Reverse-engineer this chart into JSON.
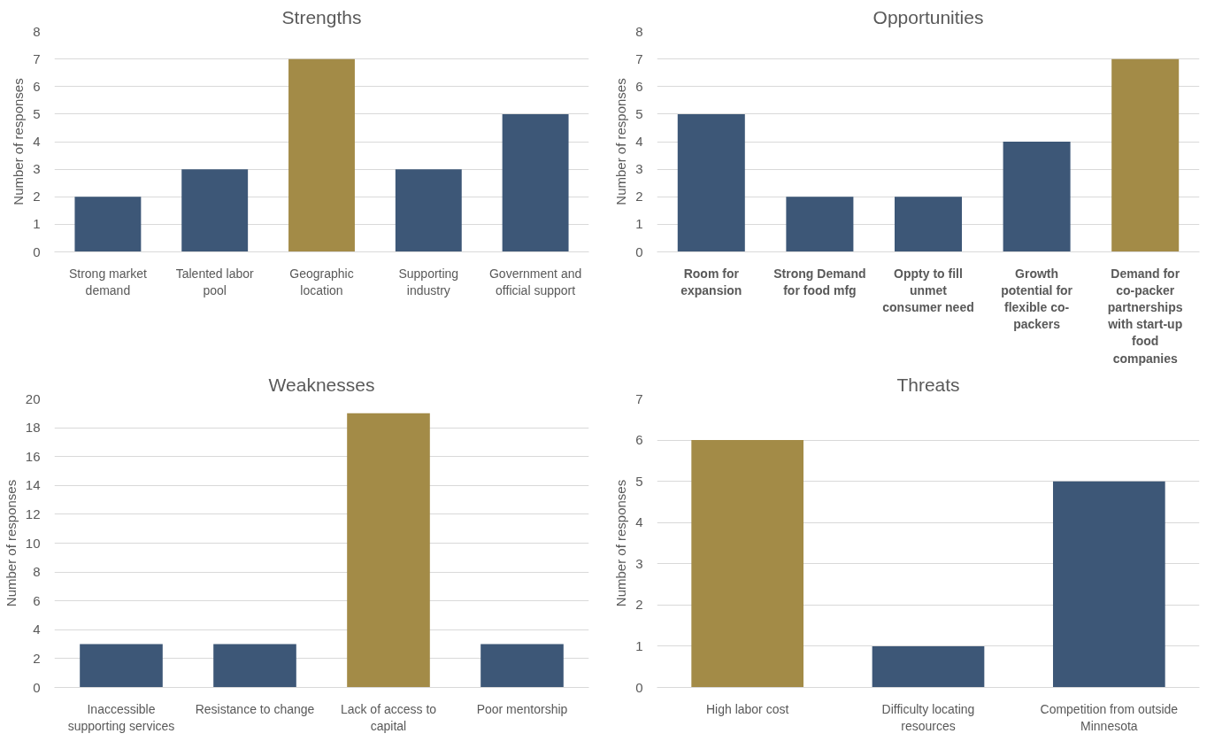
{
  "chart_data": [
    {
      "type": "bar",
      "title": "Strengths",
      "ylabel": "Number of responses",
      "categories": [
        "Strong market demand",
        "Talented labor pool",
        "Geographic location",
        "Supporting industry",
        "Government and official support"
      ],
      "values": [
        2,
        3,
        7,
        3,
        5
      ],
      "colors": [
        "#3d5777",
        "#3d5777",
        "#a38b47",
        "#3d5777",
        "#3d5777"
      ],
      "ylim": [
        0,
        8
      ],
      "yticks": [
        0,
        1,
        2,
        3,
        4,
        5,
        6,
        7,
        8
      ],
      "grid": "y"
    },
    {
      "type": "bar",
      "title": "Opportunities",
      "ylabel": "Number of responses",
      "categories": [
        "Room for expansion",
        "Strong Demand for food mfg",
        "Oppty to fill unmet consumer need",
        "Growth potential for flexible co-packers",
        "Demand for co-packer partnerships with start-up food companies"
      ],
      "values": [
        5,
        2,
        2,
        4,
        7
      ],
      "colors": [
        "#3d5777",
        "#3d5777",
        "#3d5777",
        "#3d5777",
        "#a38b47"
      ],
      "ylim": [
        0,
        8
      ],
      "yticks": [
        0,
        1,
        2,
        3,
        4,
        5,
        6,
        7,
        8
      ],
      "grid": "y"
    },
    {
      "type": "bar",
      "title": "Weaknesses",
      "ylabel": "Number of responses",
      "categories": [
        "Inaccessible supporting services",
        "Resistance to change",
        "Lack of access to capital",
        "Poor mentorship"
      ],
      "values": [
        3,
        3,
        19,
        3
      ],
      "colors": [
        "#3d5777",
        "#3d5777",
        "#a38b47",
        "#3d5777"
      ],
      "ylim": [
        0,
        20
      ],
      "yticks": [
        0,
        2,
        4,
        6,
        8,
        10,
        12,
        14,
        16,
        18,
        20
      ],
      "grid": "y"
    },
    {
      "type": "bar",
      "title": "Threats",
      "ylabel": "Number of responses",
      "categories": [
        "High labor cost",
        "Difficulty locating resources",
        "Competition from outside Minnesota"
      ],
      "values": [
        6,
        1,
        5
      ],
      "colors": [
        "#a38b47",
        "#3d5777",
        "#3d5777"
      ],
      "ylim": [
        0,
        7
      ],
      "yticks": [
        0,
        1,
        2,
        3,
        4,
        5,
        6,
        7
      ],
      "grid": "y"
    }
  ]
}
